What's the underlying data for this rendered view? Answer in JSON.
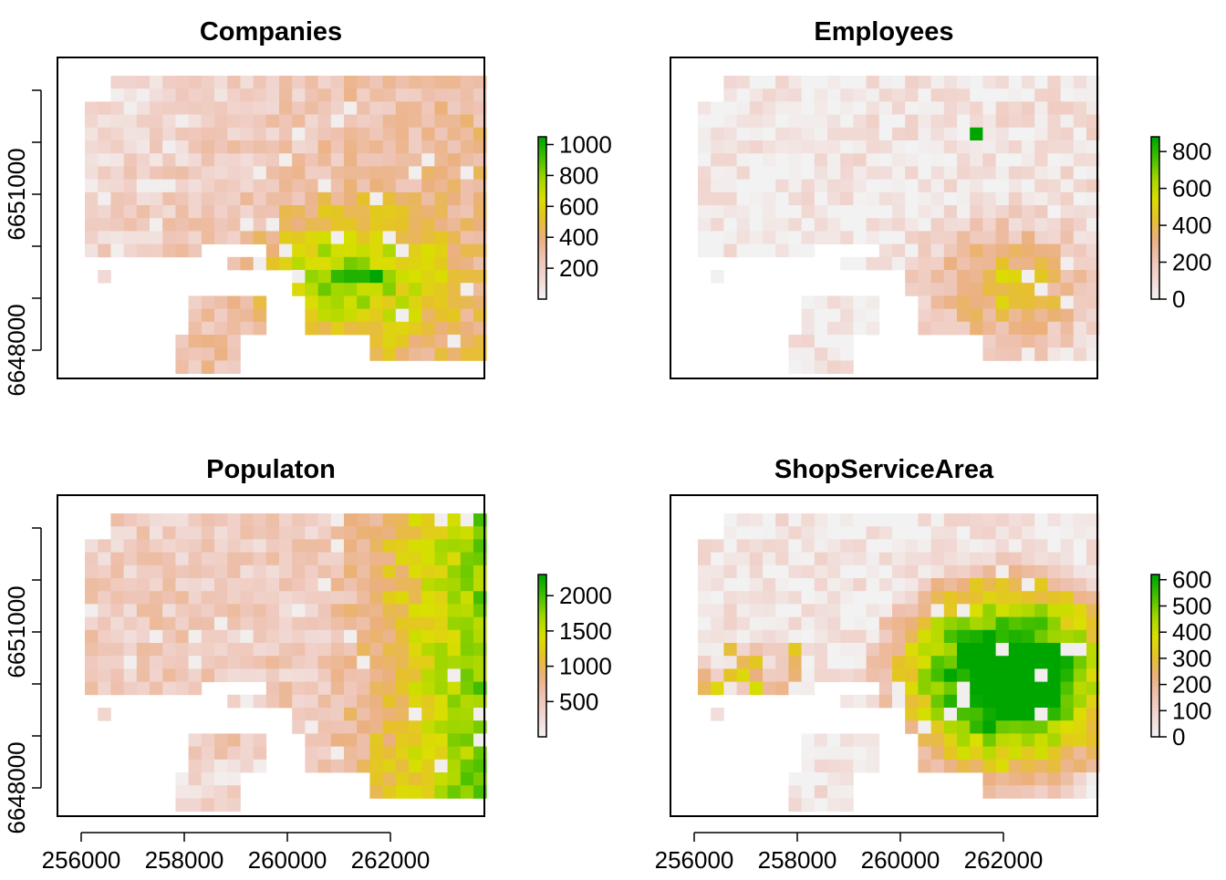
{
  "chart_data": [
    {
      "type": "heatmap",
      "title": "Companies",
      "ylabel": "",
      "xlabel": "",
      "y_ticks": [
        "6648000",
        "6651000"
      ],
      "x_ticks": [],
      "legend_ticks": [
        "200",
        "400",
        "600",
        "800",
        "1000"
      ],
      "legend_values": [
        200,
        400,
        600,
        800,
        1000
      ],
      "legend_range": [
        0,
        1050
      ],
      "grid": false,
      "legend_placement": "right",
      "notes": "raster grid, mostly light pink (~50-300), higher values (400-1000) concentrated in lower-right; peak near x=261500,y=6649300"
    },
    {
      "type": "heatmap",
      "title": "Employees",
      "ylabel": "",
      "xlabel": "",
      "y_ticks": [],
      "x_ticks": [],
      "legend_ticks": [
        "0",
        "200",
        "400",
        "600",
        "800"
      ],
      "legend_values": [
        0,
        200,
        400,
        600,
        800
      ],
      "legend_range": [
        0,
        880
      ],
      "grid": false,
      "legend_placement": "right",
      "notes": "mostly near 0; sparse highs (400-800) in lower-right, two green cells near top center"
    },
    {
      "type": "heatmap",
      "title": "Populaton",
      "ylabel": "",
      "xlabel": "",
      "y_ticks": [
        "6648000",
        "6651000"
      ],
      "x_ticks": [
        "256000",
        "258000",
        "260000",
        "262000"
      ],
      "legend_ticks": [
        "500",
        "1000",
        "1500",
        "2000"
      ],
      "legend_values": [
        500,
        1000,
        1500,
        2000
      ],
      "legend_range": [
        0,
        2300
      ],
      "grid": false,
      "legend_placement": "right",
      "notes": "pink (~300-500) across left and top; yellow/green (1000-2000) on right side"
    },
    {
      "type": "heatmap",
      "title": "ShopServiceArea",
      "ylabel": "",
      "xlabel": "",
      "y_ticks": [],
      "x_ticks": [
        "256000",
        "258000",
        "260000",
        "262000"
      ],
      "legend_ticks": [
        "0",
        "100",
        "200",
        "300",
        "400",
        "500",
        "600"
      ],
      "legend_values": [
        0,
        100,
        200,
        300,
        400,
        500,
        600
      ],
      "legend_range": [
        0,
        620
      ],
      "grid": false,
      "legend_placement": "right",
      "notes": "large saturated green (>=600) blob in center-right; scattered orange/green elsewhere"
    }
  ],
  "colors": {
    "ramp": [
      "#f2f2f2",
      "#f1d7d2",
      "#eec3b3",
      "#ebb07e",
      "#e6c12a",
      "#d9df00",
      "#a1d600",
      "#46c000",
      "#00a600"
    ]
  }
}
